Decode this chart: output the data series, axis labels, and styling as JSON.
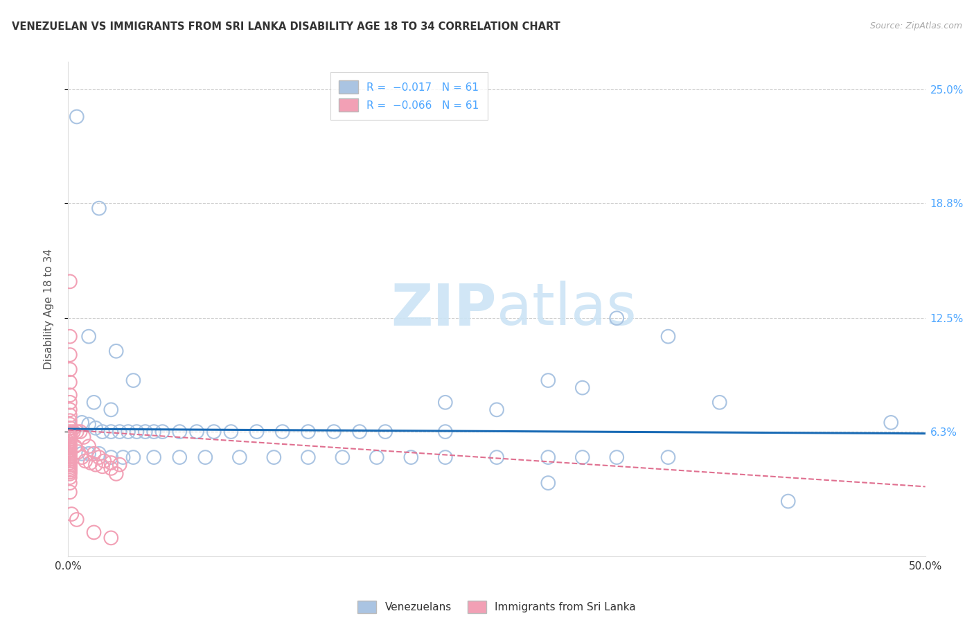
{
  "title": "VENEZUELAN VS IMMIGRANTS FROM SRI LANKA DISABILITY AGE 18 TO 34 CORRELATION CHART",
  "source": "Source: ZipAtlas.com",
  "ylabel": "Disability Age 18 to 34",
  "xlim": [
    0,
    0.5
  ],
  "ylim": [
    -0.005,
    0.265
  ],
  "yticks": [
    0.063,
    0.125,
    0.188,
    0.25
  ],
  "ytick_labels": [
    "6.3%",
    "12.5%",
    "18.8%",
    "25.0%"
  ],
  "xticks": [
    0.0,
    0.1,
    0.2,
    0.3,
    0.4,
    0.5
  ],
  "xtick_labels": [
    "0.0%",
    "",
    "",
    "",
    "",
    "50.0%"
  ],
  "blue_color": "#aac4e2",
  "pink_color": "#f2a0b5",
  "blue_line_color": "#1a6bb5",
  "pink_line_color": "#e07090",
  "grid_color": "#cccccc",
  "watermark_color": "#cce4f5",
  "legend_label1": "Venezuelans",
  "legend_label2": "Immigrants from Sri Lanka",
  "blue_scatter": [
    [
      0.005,
      0.235
    ],
    [
      0.018,
      0.185
    ],
    [
      0.012,
      0.115
    ],
    [
      0.028,
      0.107
    ],
    [
      0.038,
      0.091
    ],
    [
      0.015,
      0.079
    ],
    [
      0.025,
      0.075
    ],
    [
      0.008,
      0.068
    ],
    [
      0.012,
      0.067
    ],
    [
      0.016,
      0.065
    ],
    [
      0.02,
      0.063
    ],
    [
      0.025,
      0.063
    ],
    [
      0.03,
      0.063
    ],
    [
      0.035,
      0.063
    ],
    [
      0.04,
      0.063
    ],
    [
      0.045,
      0.063
    ],
    [
      0.05,
      0.063
    ],
    [
      0.055,
      0.063
    ],
    [
      0.065,
      0.063
    ],
    [
      0.075,
      0.063
    ],
    [
      0.085,
      0.063
    ],
    [
      0.095,
      0.063
    ],
    [
      0.11,
      0.063
    ],
    [
      0.125,
      0.063
    ],
    [
      0.14,
      0.063
    ],
    [
      0.155,
      0.063
    ],
    [
      0.17,
      0.063
    ],
    [
      0.185,
      0.063
    ],
    [
      0.22,
      0.063
    ],
    [
      0.28,
      0.091
    ],
    [
      0.3,
      0.087
    ],
    [
      0.32,
      0.125
    ],
    [
      0.35,
      0.115
    ],
    [
      0.22,
      0.079
    ],
    [
      0.25,
      0.075
    ],
    [
      0.38,
      0.079
    ],
    [
      0.48,
      0.068
    ],
    [
      0.008,
      0.051
    ],
    [
      0.012,
      0.051
    ],
    [
      0.018,
      0.051
    ],
    [
      0.025,
      0.049
    ],
    [
      0.032,
      0.049
    ],
    [
      0.038,
      0.049
    ],
    [
      0.05,
      0.049
    ],
    [
      0.065,
      0.049
    ],
    [
      0.08,
      0.049
    ],
    [
      0.1,
      0.049
    ],
    [
      0.12,
      0.049
    ],
    [
      0.14,
      0.049
    ],
    [
      0.16,
      0.049
    ],
    [
      0.18,
      0.049
    ],
    [
      0.2,
      0.049
    ],
    [
      0.22,
      0.049
    ],
    [
      0.25,
      0.049
    ],
    [
      0.28,
      0.049
    ],
    [
      0.3,
      0.049
    ],
    [
      0.32,
      0.049
    ],
    [
      0.35,
      0.049
    ],
    [
      0.42,
      0.025
    ],
    [
      0.28,
      0.035
    ]
  ],
  "pink_scatter": [
    [
      0.001,
      0.145
    ],
    [
      0.001,
      0.115
    ],
    [
      0.001,
      0.105
    ],
    [
      0.001,
      0.097
    ],
    [
      0.001,
      0.09
    ],
    [
      0.001,
      0.083
    ],
    [
      0.001,
      0.079
    ],
    [
      0.001,
      0.075
    ],
    [
      0.001,
      0.072
    ],
    [
      0.001,
      0.069
    ],
    [
      0.001,
      0.067
    ],
    [
      0.001,
      0.065
    ],
    [
      0.001,
      0.063
    ],
    [
      0.001,
      0.062
    ],
    [
      0.001,
      0.061
    ],
    [
      0.001,
      0.06
    ],
    [
      0.001,
      0.059
    ],
    [
      0.001,
      0.058
    ],
    [
      0.001,
      0.057
    ],
    [
      0.001,
      0.056
    ],
    [
      0.001,
      0.055
    ],
    [
      0.001,
      0.054
    ],
    [
      0.001,
      0.053
    ],
    [
      0.001,
      0.052
    ],
    [
      0.001,
      0.051
    ],
    [
      0.001,
      0.05
    ],
    [
      0.001,
      0.049
    ],
    [
      0.001,
      0.048
    ],
    [
      0.001,
      0.047
    ],
    [
      0.001,
      0.046
    ],
    [
      0.001,
      0.045
    ],
    [
      0.001,
      0.044
    ],
    [
      0.001,
      0.043
    ],
    [
      0.001,
      0.042
    ],
    [
      0.001,
      0.041
    ],
    [
      0.001,
      0.04
    ],
    [
      0.003,
      0.063
    ],
    [
      0.005,
      0.063
    ],
    [
      0.007,
      0.063
    ],
    [
      0.009,
      0.06
    ],
    [
      0.012,
      0.055
    ],
    [
      0.015,
      0.051
    ],
    [
      0.018,
      0.049
    ],
    [
      0.021,
      0.047
    ],
    [
      0.025,
      0.046
    ],
    [
      0.03,
      0.045
    ],
    [
      0.004,
      0.055
    ],
    [
      0.006,
      0.052
    ],
    [
      0.008,
      0.049
    ],
    [
      0.01,
      0.047
    ],
    [
      0.013,
      0.046
    ],
    [
      0.016,
      0.045
    ],
    [
      0.02,
      0.044
    ],
    [
      0.025,
      0.043
    ],
    [
      0.002,
      0.018
    ],
    [
      0.005,
      0.015
    ],
    [
      0.015,
      0.008
    ],
    [
      0.025,
      0.005
    ],
    [
      0.001,
      0.03
    ],
    [
      0.001,
      0.035
    ],
    [
      0.001,
      0.038
    ],
    [
      0.028,
      0.04
    ]
  ],
  "blue_line_x": [
    0.0,
    0.5
  ],
  "blue_line_y": [
    0.0645,
    0.062
  ],
  "pink_line_x": [
    0.0,
    0.5
  ],
  "pink_line_y": [
    0.064,
    0.033
  ]
}
